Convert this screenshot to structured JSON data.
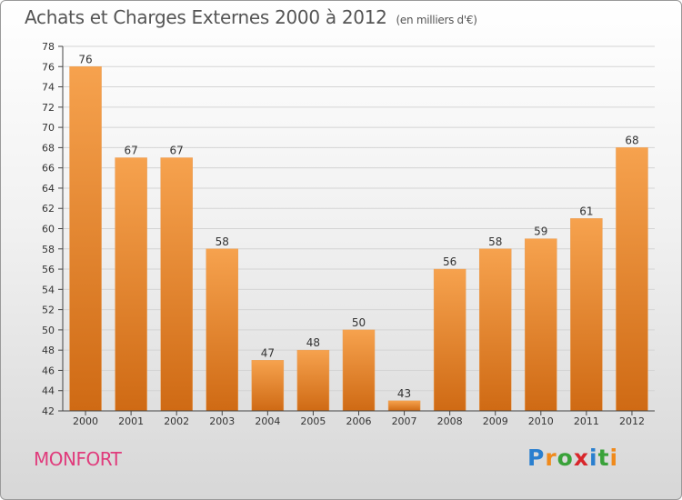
{
  "header": {
    "title": "Achats et Charges Externes 2000 à 2012",
    "unit": "(en milliers d'€)"
  },
  "footer": {
    "place": "MONFORT",
    "logo": "Proxiti",
    "logo_letters": [
      {
        "ch": "P",
        "color": "#2a7fcf"
      },
      {
        "ch": "r",
        "color": "#f08a1c"
      },
      {
        "ch": "o",
        "color": "#3aa23a"
      },
      {
        "ch": "x",
        "color": "#d8262b"
      },
      {
        "ch": "i",
        "color": "#2a7fcf"
      },
      {
        "ch": "t",
        "color": "#3aa23a"
      },
      {
        "ch": "i",
        "color": "#f08a1c"
      }
    ]
  },
  "chart_data": {
    "type": "bar",
    "categories": [
      "2000",
      "2001",
      "2002",
      "2003",
      "2004",
      "2005",
      "2006",
      "2007",
      "2008",
      "2009",
      "2010",
      "2011",
      "2012"
    ],
    "values": [
      76,
      67,
      67,
      58,
      47,
      48,
      50,
      43,
      56,
      58,
      59,
      61,
      68
    ],
    "yticks": [
      42,
      44,
      46,
      48,
      50,
      52,
      54,
      56,
      58,
      60,
      62,
      64,
      66,
      68,
      70,
      72,
      74,
      76,
      78
    ],
    "ylim": [
      42,
      78
    ],
    "grid": true,
    "colors": {
      "bar_light": "#f6a24e",
      "bar_dark": "#cf6a14",
      "grid": "#d4d4d4",
      "axis": "#444444"
    }
  }
}
